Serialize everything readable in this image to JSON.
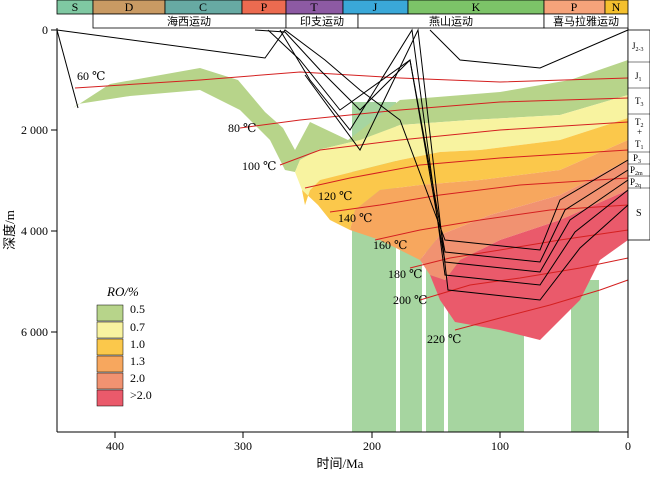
{
  "periods": [
    {
      "label": "S",
      "color": "#7fc8a2"
    },
    {
      "label": "D",
      "color": "#c99a63"
    },
    {
      "label": "C",
      "color": "#67aaa3"
    },
    {
      "label": "P",
      "color": "#ec6b50"
    },
    {
      "label": "T",
      "color": "#8d5aa3"
    },
    {
      "label": "J",
      "color": "#3aa8d8"
    },
    {
      "label": "K",
      "color": "#7cc368"
    },
    {
      "label": "P",
      "color": "#f6a37a"
    },
    {
      "label": "N",
      "color": "#f4c02e"
    }
  ],
  "orogenies": [
    "海西运动",
    "印支运动",
    "燕山运动",
    "喜马拉雅运动"
  ],
  "x_axis": {
    "label": "时间/Ma",
    "ticks": [
      "400",
      "300",
      "200",
      "100",
      "0"
    ]
  },
  "y_axis": {
    "label": "深度/m",
    "ticks": [
      "0",
      "2 000",
      "4 000",
      "6 000"
    ]
  },
  "isotherms": [
    "60 ℃",
    "80 ℃",
    "100 ℃",
    "120 ℃",
    "140 ℃",
    "160 ℃",
    "180 ℃",
    "200 ℃",
    "220 ℃"
  ],
  "column_labels": [
    {
      "main": "J",
      "sub": "2-3"
    },
    {
      "main": "J",
      "sub": "1"
    },
    {
      "main": "T",
      "sub": "3"
    },
    {
      "main": "T",
      "sub": "2"
    },
    {
      "main": "+",
      "sub": ""
    },
    {
      "main": "T",
      "sub": "1"
    },
    {
      "main": "P",
      "sub": "3"
    },
    {
      "main": "P",
      "sub": "2m"
    },
    {
      "main": "P",
      "sub": "2q"
    },
    {
      "main": "S",
      "sub": ""
    }
  ],
  "legend": {
    "title": "RO/%",
    "items": [
      {
        "label": "0.5",
        "color": "#b7d48a"
      },
      {
        "label": "0.7",
        "color": "#f8f3a0"
      },
      {
        "label": "1.0",
        "color": "#fbc84b"
      },
      {
        "label": "1.3",
        "color": "#f7a75e"
      },
      {
        "label": "2.0",
        "color": "#f19271"
      },
      {
        "label": ">2.0",
        "color": "#ea5a6b"
      }
    ]
  },
  "colors": {
    "green_fill": "#b7d48a",
    "ro_0_7": "#f8f3a0",
    "ro_1_0": "#fbc84b",
    "ro_1_3": "#f7a75e",
    "ro_2_0": "#f19271",
    "ro_gt_2": "#ea5a6b",
    "hydrocarbon_window": "#a6d5a0",
    "isotherm": "#d42020",
    "horizon": "#000000"
  }
}
